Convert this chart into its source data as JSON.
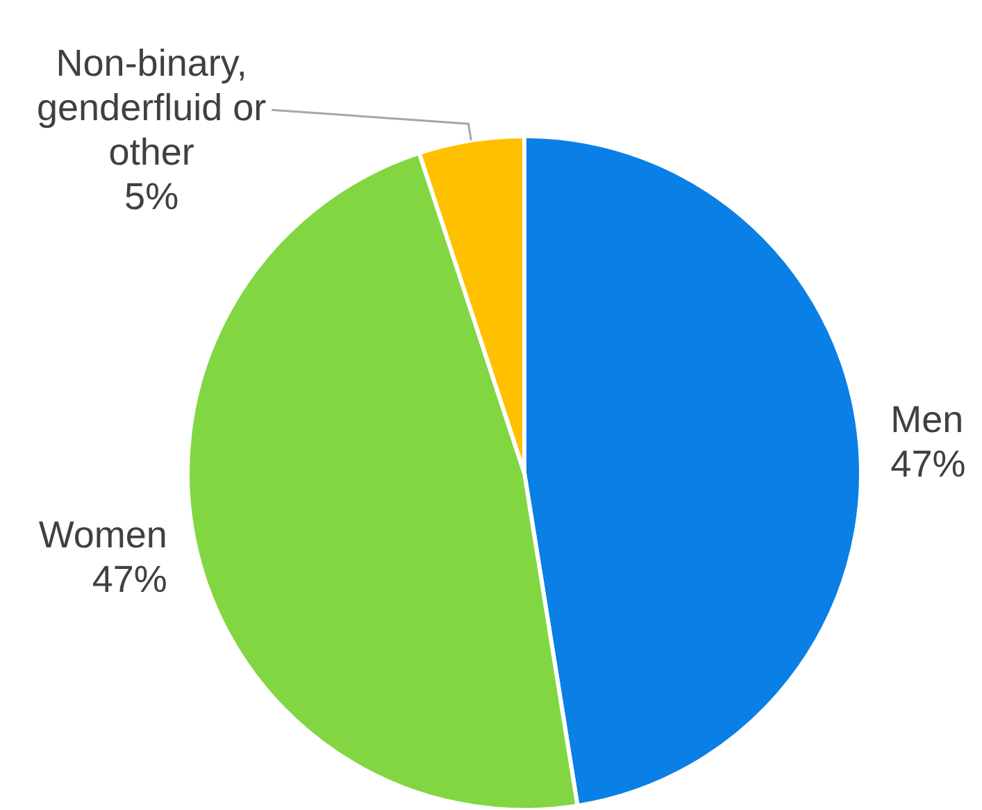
{
  "chart_data": {
    "type": "pie",
    "categories": [
      "Men",
      "Women",
      "Non-binary, genderfluid or other"
    ],
    "values": [
      47,
      47,
      5
    ],
    "value_labels": [
      "47%",
      "47%",
      "5%"
    ],
    "colors": [
      "#0a7fe6",
      "#82d642",
      "#ffc000"
    ],
    "legend": false
  }
}
